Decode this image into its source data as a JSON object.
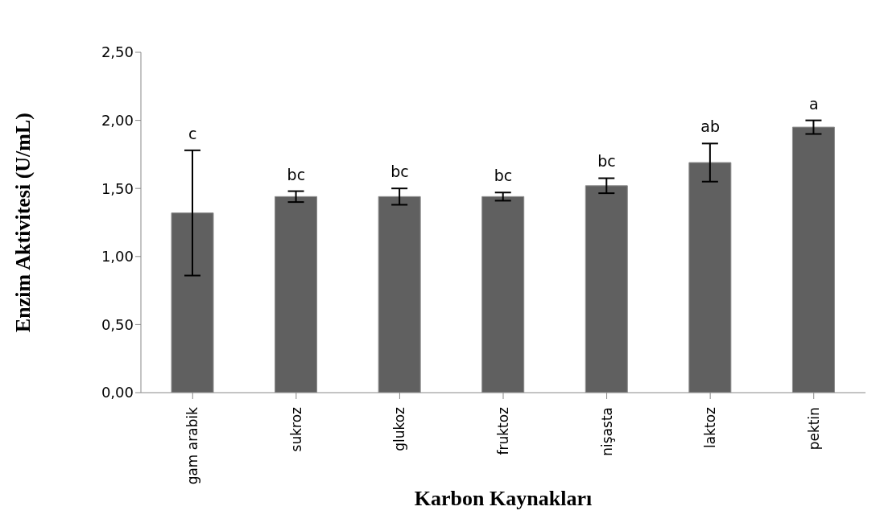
{
  "chart_data": {
    "type": "bar",
    "xlabel": "Karbon Kaynakları",
    "ylabel": "Enzim Aktivitesi (U/mL)",
    "categories": [
      "gam arabik",
      "sukroz",
      "glukoz",
      "fruktoz",
      "nişasta",
      "laktoz",
      "pektin"
    ],
    "values": [
      1.32,
      1.44,
      1.44,
      1.44,
      1.52,
      1.69,
      1.95
    ],
    "errors": [
      0.46,
      0.04,
      0.06,
      0.03,
      0.055,
      0.14,
      0.05
    ],
    "color": "#606060",
    "ylim": [
      0,
      2.5
    ],
    "yticks": [
      {
        "value": 0,
        "label": "0,00"
      },
      {
        "value": 0.5,
        "label": "0,50"
      },
      {
        "value": 1,
        "label": "1,00"
      },
      {
        "value": 1.5,
        "label": "1,50"
      },
      {
        "value": 2,
        "label": "2,00"
      },
      {
        "value": 2.5,
        "label": "2,50"
      }
    ],
    "grid": false,
    "legend": false,
    "annotations": [
      {
        "text": "c",
        "x": "gam arabik",
        "y": 1.78
      },
      {
        "text": "bc",
        "x": "sukroz",
        "y": 1.48
      },
      {
        "text": "bc",
        "x": "glukoz",
        "y": 1.5
      },
      {
        "text": "bc",
        "x": "fruktoz",
        "y": 1.47
      },
      {
        "text": "bc",
        "x": "nişasta",
        "y": 1.58
      },
      {
        "text": "ab",
        "x": "laktoz",
        "y": 1.83
      },
      {
        "text": "a",
        "x": "pektin",
        "y": 2.0
      }
    ]
  }
}
